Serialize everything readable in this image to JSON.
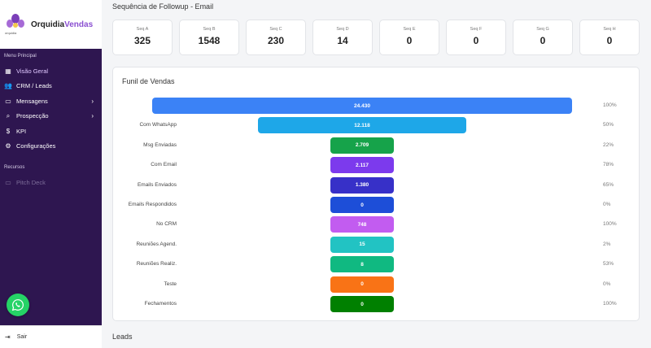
{
  "brand": {
    "name_prefix": "Orquidia",
    "name_suffix": "Vendas",
    "logo_text": "orquidia"
  },
  "sidebar": {
    "section_main": "Menu Principal",
    "items": [
      {
        "label": "Visão Geral",
        "icon": "grid-icon",
        "active": true,
        "chevron": false
      },
      {
        "label": "CRM / Leads",
        "icon": "users-icon",
        "active": false,
        "chevron": false
      },
      {
        "label": "Mensagens",
        "icon": "message-icon",
        "active": false,
        "chevron": true
      },
      {
        "label": "Prospecção",
        "icon": "search-icon",
        "active": false,
        "chevron": true
      },
      {
        "label": "KPI",
        "icon": "dollar-icon",
        "active": false,
        "chevron": false
      },
      {
        "label": "Configurações",
        "icon": "gear-icon",
        "active": false,
        "chevron": false
      }
    ],
    "section_resources": "Recursos",
    "resources": [
      {
        "label": "Pitch Deck",
        "icon": "monitor-icon"
      }
    ],
    "logout_label": "Sair"
  },
  "main": {
    "seq_title": "Sequência de Followup - Email",
    "seq_cards": [
      {
        "label": "Seq A",
        "value": "325"
      },
      {
        "label": "Seq B",
        "value": "1548"
      },
      {
        "label": "Seq C",
        "value": "230"
      },
      {
        "label": "Seq D",
        "value": "14"
      },
      {
        "label": "Seq E",
        "value": "0"
      },
      {
        "label": "Seq F",
        "value": "0"
      },
      {
        "label": "Seq G",
        "value": "0"
      },
      {
        "label": "Seq H",
        "value": "0"
      }
    ],
    "funnel_title": "Funil de Vendas",
    "leads_title": "Leads"
  },
  "chart_data": {
    "type": "bar",
    "categories": [
      "Clientes",
      "Com WhatsApp",
      "Msg Enviadas",
      "Com Email",
      "Emails Enviados",
      "Emails Respondidos",
      "No CRM",
      "Reuniões Agend.",
      "Reuniões Realiz.",
      "Teste",
      "Fechamentos"
    ],
    "values": [
      24430,
      12118,
      2709,
      2117,
      1380,
      0,
      748,
      15,
      8,
      0,
      0
    ],
    "value_labels": [
      "24.430",
      "12.118",
      "2.709",
      "2.117",
      "1.380",
      "0",
      "748",
      "15",
      "8",
      "0",
      "0"
    ],
    "percentages": [
      "100%",
      "50%",
      "22%",
      "78%",
      "65%",
      "0%",
      "100%",
      "2%",
      "53%",
      "0%",
      "100%"
    ],
    "colors": [
      "#3b82f6",
      "#1ea7e8",
      "#16a34a",
      "#7c3aed",
      "#3730c8",
      "#1d4ed8",
      "#c25cf0",
      "#22c3c3",
      "#10b981",
      "#f97316",
      "#008000"
    ]
  }
}
